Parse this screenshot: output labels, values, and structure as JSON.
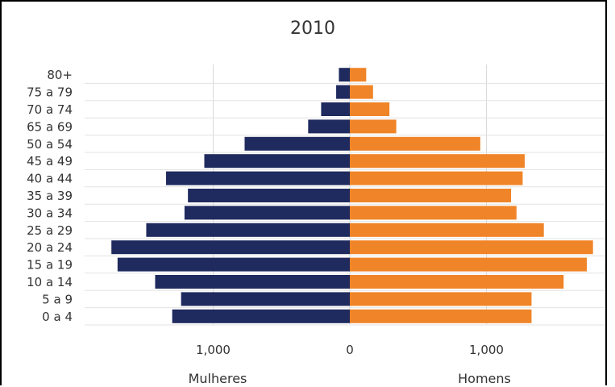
{
  "chart_data": {
    "type": "bar",
    "orientation": "horizontal",
    "layout": "population-pyramid",
    "title": "2010",
    "categories": [
      "80+",
      "75 a 79",
      "70 a 74",
      "65 a 69",
      "50 a 54",
      "45 a 49",
      "40 a 44",
      "35 a 39",
      "30 a 34",
      "25 a 29",
      "20 a 24",
      "15 a 19",
      "10 a 14",
      "5 a 9",
      "0 a 4"
    ],
    "series": [
      {
        "name": "Mulheres",
        "side": "left",
        "color": "#1f2a5e",
        "values": [
          80,
          100,
          210,
          305,
          770,
          1065,
          1345,
          1185,
          1210,
          1490,
          1745,
          1700,
          1425,
          1235,
          1300
        ]
      },
      {
        "name": "Homens",
        "side": "right",
        "color": "#f08428",
        "values": [
          120,
          170,
          290,
          340,
          955,
          1280,
          1265,
          1180,
          1220,
          1420,
          1780,
          1735,
          1565,
          1330,
          1330
        ]
      }
    ],
    "xlim": [
      -1850,
      1850
    ],
    "x_tick_values": [
      -1000,
      0,
      1000
    ],
    "x_tick_labels": [
      "1,000",
      "0",
      "1,000"
    ],
    "xlabel_left": "Mulheres",
    "xlabel_right": "Homens",
    "grid": "vertical"
  }
}
